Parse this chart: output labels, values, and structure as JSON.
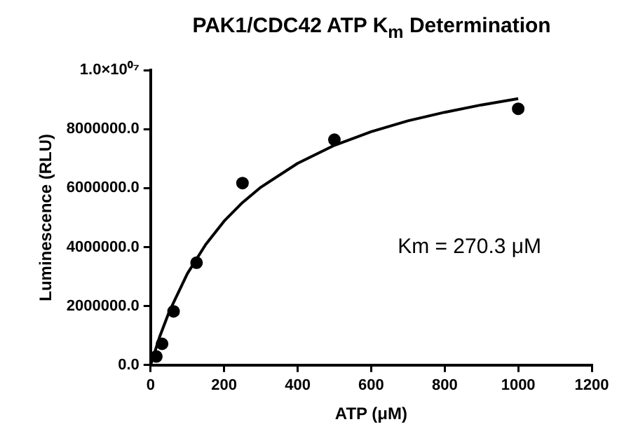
{
  "chart_data": {
    "type": "scatter",
    "title": "PAK1/CDC42 ATP K$_{m}$ Determination",
    "xlabel": "ATP (μM)",
    "ylabel": "Luminescence (RLU)",
    "x": [
      15.6,
      31.25,
      62.5,
      125,
      250,
      500,
      1000
    ],
    "series": [
      {
        "color": "#000000",
        "values": [
          290000,
          720000,
          1820000,
          3470000,
          6170000,
          7640000,
          8690000
        ]
      },
      {
        "type": "line",
        "marker": "none",
        "color": "#000000",
        "x": [
          0,
          25,
          50,
          100,
          150,
          200,
          250,
          300,
          400,
          500,
          600,
          700,
          800,
          900,
          1000
        ],
        "values": [
          0,
          970000,
          1790000,
          3100000,
          4090000,
          4880000,
          5510000,
          6030000,
          6840000,
          7450000,
          7910000,
          8280000,
          8570000,
          8820000,
          9030000
        ]
      }
    ],
    "xlim": [
      0,
      1200
    ],
    "xticks": [
      0,
      200,
      400,
      600,
      800,
      1000,
      1200
    ],
    "ylim": [
      0,
      10000000
    ],
    "yticks": [
      {
        "value": 0,
        "label": "0.0"
      },
      {
        "value": 2000000,
        "label": "2000000.0"
      },
      {
        "value": 4000000,
        "label": "4000000.0"
      },
      {
        "value": 6000000,
        "label": "6000000.0"
      },
      {
        "value": 8000000,
        "label": "8000000.0"
      },
      {
        "value": 10000000,
        "label": "1.0×10⁰⁷"
      }
    ],
    "annotations": [
      "Km = 270.3 μM"
    ],
    "grid": false,
    "legend": false,
    "marker": "circle"
  }
}
